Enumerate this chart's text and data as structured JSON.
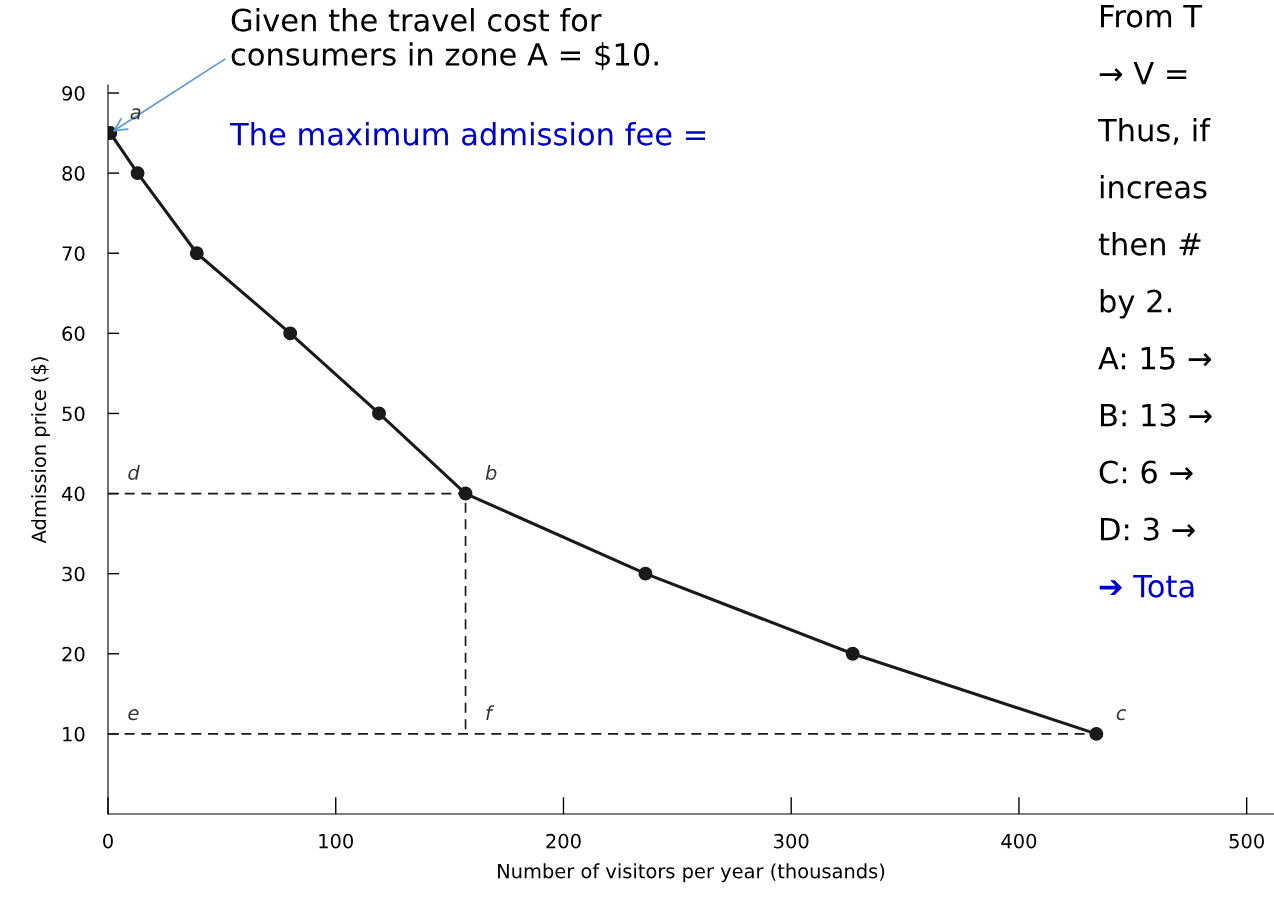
{
  "chart_data": {
    "type": "line",
    "xlabel": "Number of visitors per year (thousands)",
    "ylabel": "Admission price ($)",
    "xlim": [
      0,
      512
    ],
    "ylim": [
      0,
      91
    ],
    "xticks": [
      0,
      100,
      200,
      300,
      400,
      500
    ],
    "yticks": [
      10,
      20,
      30,
      40,
      50,
      60,
      70,
      80,
      90
    ],
    "grid": false,
    "legend": false,
    "series": [
      {
        "color": "#1a1a1a",
        "marker": "circle",
        "line_style": "solid",
        "x": [
          1,
          13,
          39,
          80,
          119,
          157,
          236,
          327,
          434
        ],
        "values": [
          85,
          80,
          70,
          60,
          50,
          40,
          30,
          20,
          10
        ]
      },
      {
        "color": "#1a1a1a",
        "marker": "none",
        "line_style": "dashed",
        "x": [
          0,
          157,
          157
        ],
        "values": [
          40,
          40,
          10
        ]
      },
      {
        "color": "#1a1a1a",
        "marker": "none",
        "line_style": "dashed",
        "x": [
          0,
          434
        ],
        "values": [
          10,
          10
        ]
      }
    ],
    "annotations": [
      {
        "text": "Given the travel cost for\nconsumers in zone A = $10.",
        "x": 1,
        "y": 85
      },
      {
        "text": "a",
        "x": 1,
        "y": 85
      },
      {
        "text": "b",
        "x": 157,
        "y": 40
      },
      {
        "text": "c",
        "x": 434,
        "y": 10
      },
      {
        "text": "d",
        "x": 0,
        "y": 40
      },
      {
        "text": "e",
        "x": 0,
        "y": 10
      },
      {
        "text": "f",
        "x": 157,
        "y": 10
      },
      "The maximum admission fee =",
      "From T",
      "→ V =",
      "Thus, if",
      "increas",
      "then #",
      "by 2.",
      "A: 15 →",
      "B: 13 →",
      "C: 6 →",
      "D: 3 →",
      "➔ Tota"
    ]
  }
}
